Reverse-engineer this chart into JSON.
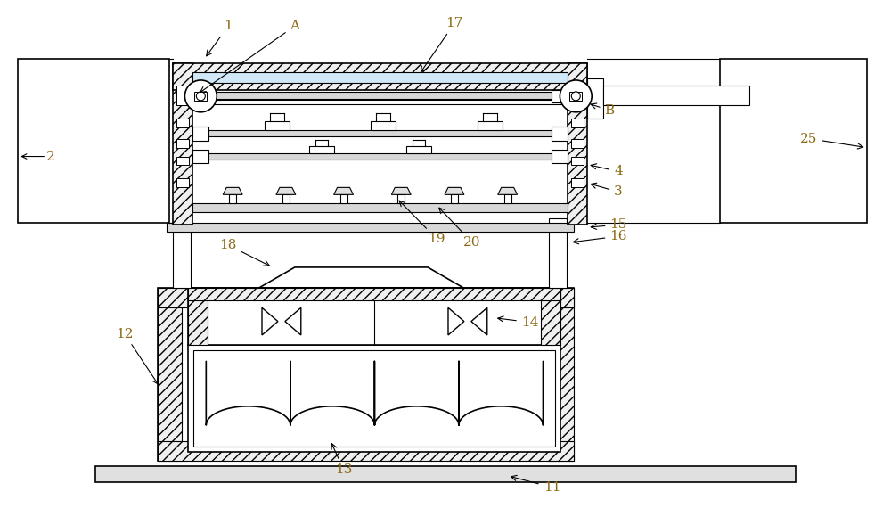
{
  "bg_color": "#ffffff",
  "line_color": "#000000",
  "label_color": "#8B6914",
  "figsize": [
    10.0,
    5.7
  ],
  "dpi": 100,
  "lw_main": 1.2,
  "lw_thin": 0.8,
  "lw_thick": 1.8
}
